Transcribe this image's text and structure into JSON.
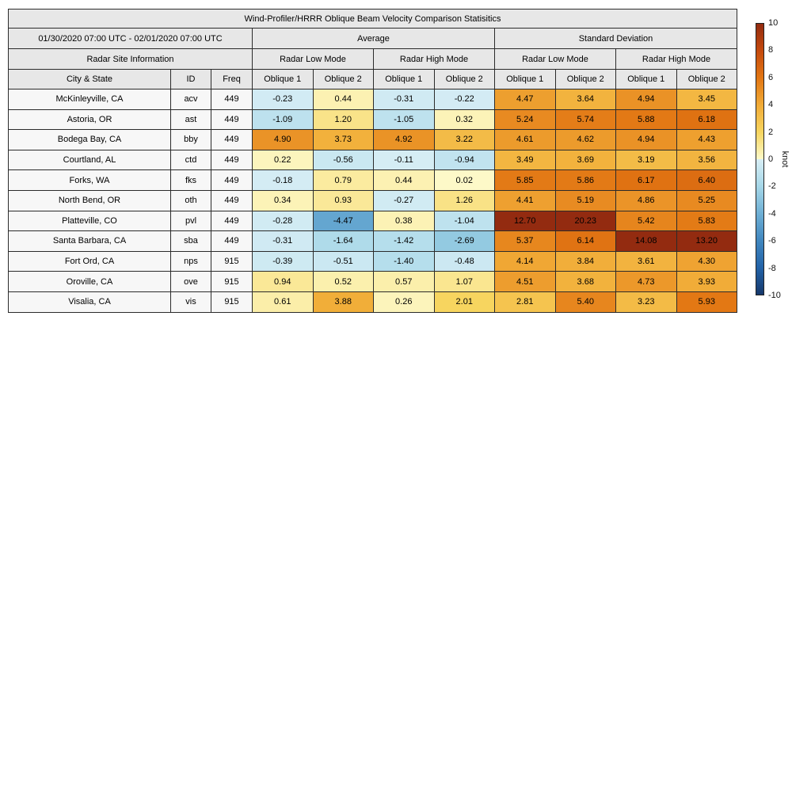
{
  "title": "Wind-Profiler/HRRR Oblique Beam Velocity Comparison Statisitics",
  "header": {
    "date_range": "01/30/2020 07:00 UTC - 02/01/2020 07:00 UTC",
    "site_info": "Radar Site Information",
    "average": "Average",
    "std_dev": "Standard Deviation",
    "low_mode": "Radar Low Mode",
    "high_mode": "Radar High Mode",
    "city": "City & State",
    "id": "ID",
    "freq": "Freq",
    "oblique1": "Oblique 1",
    "oblique2": "Oblique 2"
  },
  "chart_data": {
    "type": "heatmap",
    "title": "Wind-Profiler/HRRR Oblique Beam Velocity Comparison Statisitics",
    "subtitle_period": "01/30/2020 07:00 UTC - 02/01/2020 07:00 UTC",
    "value_columns": [
      "Average Radar Low Mode Oblique 1",
      "Average Radar Low Mode Oblique 2",
      "Average Radar High Mode Oblique 1",
      "Average Radar High Mode Oblique 2",
      "Standard Deviation Radar Low Mode Oblique 1",
      "Standard Deviation Radar Low Mode Oblique 2",
      "Standard Deviation Radar High Mode Oblique 1",
      "Standard Deviation Radar High Mode Oblique 2"
    ],
    "rows": [
      {
        "city": "McKinleyville, CA",
        "id": "acv",
        "freq": "449",
        "values": [
          -0.23,
          0.44,
          -0.31,
          -0.22,
          4.47,
          3.64,
          4.94,
          3.45
        ]
      },
      {
        "city": "Astoria, OR",
        "id": "ast",
        "freq": "449",
        "values": [
          -1.09,
          1.2,
          -1.05,
          0.32,
          5.24,
          5.74,
          5.88,
          6.18
        ]
      },
      {
        "city": "Bodega Bay, CA",
        "id": "bby",
        "freq": "449",
        "values": [
          4.9,
          3.73,
          4.92,
          3.22,
          4.61,
          4.62,
          4.94,
          4.43
        ]
      },
      {
        "city": "Courtland, AL",
        "id": "ctd",
        "freq": "449",
        "values": [
          0.22,
          -0.56,
          -0.11,
          -0.94,
          3.49,
          3.69,
          3.19,
          3.56
        ]
      },
      {
        "city": "Forks, WA",
        "id": "fks",
        "freq": "449",
        "values": [
          -0.18,
          0.79,
          0.44,
          0.02,
          5.85,
          5.86,
          6.17,
          6.4
        ]
      },
      {
        "city": "North Bend, OR",
        "id": "oth",
        "freq": "449",
        "values": [
          0.34,
          0.93,
          -0.27,
          1.26,
          4.41,
          5.19,
          4.86,
          5.25
        ]
      },
      {
        "city": "Platteville, CO",
        "id": "pvl",
        "freq": "449",
        "values": [
          -0.28,
          -4.47,
          0.38,
          -1.04,
          12.7,
          20.23,
          5.42,
          5.83
        ]
      },
      {
        "city": "Santa Barbara, CA",
        "id": "sba",
        "freq": "449",
        "values": [
          -0.31,
          -1.64,
          -1.42,
          -2.69,
          5.37,
          6.14,
          14.08,
          13.2
        ]
      },
      {
        "city": "Fort Ord, CA",
        "id": "nps",
        "freq": "915",
        "values": [
          -0.39,
          -0.51,
          -1.4,
          -0.48,
          4.14,
          3.84,
          3.61,
          4.3
        ]
      },
      {
        "city": "Oroville, CA",
        "id": "ove",
        "freq": "915",
        "values": [
          0.94,
          0.52,
          0.57,
          1.07,
          4.51,
          3.68,
          4.73,
          3.93
        ]
      },
      {
        "city": "Visalia, CA",
        "id": "vis",
        "freq": "915",
        "values": [
          0.61,
          3.88,
          0.26,
          2.01,
          2.81,
          5.4,
          3.23,
          5.93
        ]
      }
    ],
    "colorbar": {
      "unit": "knot",
      "min": -10,
      "max": 10,
      "ticks": [
        10,
        8,
        6,
        4,
        2,
        0,
        -2,
        -4,
        -6,
        -8,
        -10
      ],
      "position": "right"
    }
  },
  "colors": {
    "header_bg": "#e7e7e7",
    "label_cell_bg": "#f7f7f7",
    "border": "#2b2b2b",
    "colormap_stops": [
      [
        -10,
        "#16386b"
      ],
      [
        -8,
        "#2363a8"
      ],
      [
        -6,
        "#4187bf"
      ],
      [
        -4,
        "#6fb0d5"
      ],
      [
        -2,
        "#a6d7e8"
      ],
      [
        -1e-09,
        "#d8eef5"
      ],
      [
        0,
        "#fdf9c9"
      ],
      [
        2,
        "#f7d55f"
      ],
      [
        4,
        "#f1ab37"
      ],
      [
        6,
        "#e27613"
      ],
      [
        8,
        "#c54a0d"
      ],
      [
        10,
        "#932b10"
      ]
    ]
  }
}
